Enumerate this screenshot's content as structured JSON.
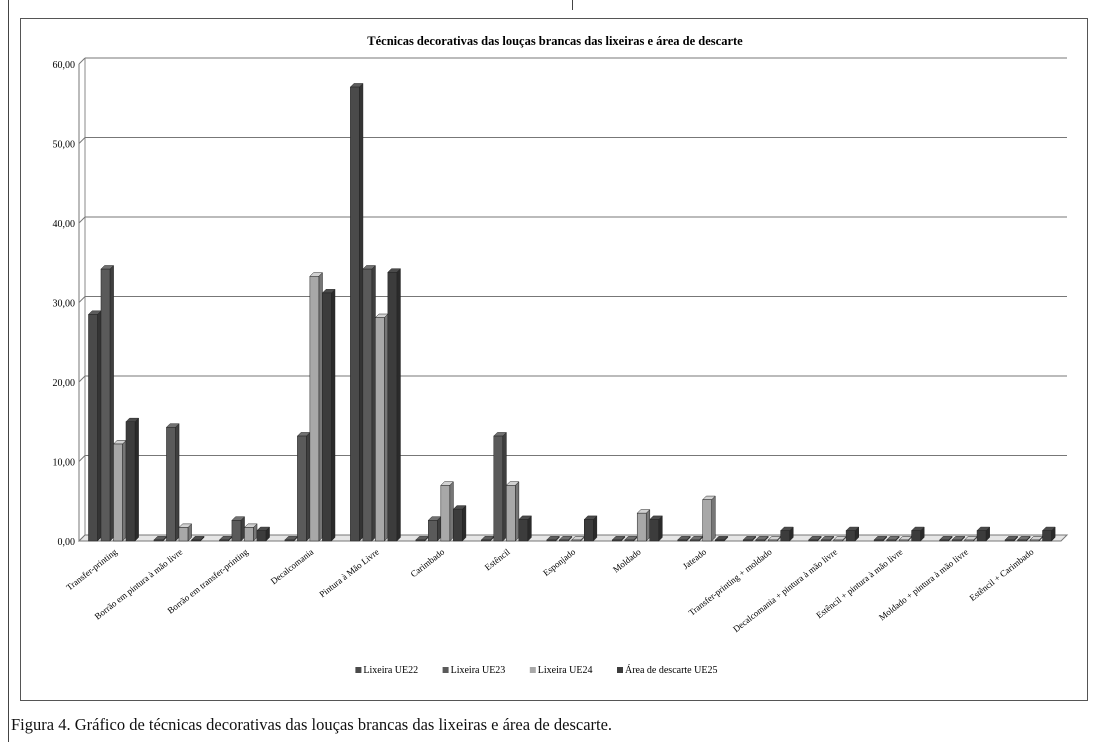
{
  "caption": "Figura 4. Gráfico de técnicas decorativas das louças brancas das lixeiras e área de descarte.",
  "chart_data": {
    "type": "bar",
    "title": "Técnicas decorativas das louças brancas das lixeiras e área de descarte",
    "xlabel": "",
    "ylabel": "",
    "ylim": [
      0,
      60
    ],
    "yticks": [
      "0,00",
      "10,00",
      "20,00",
      "30,00",
      "40,00",
      "50,00",
      "60,00"
    ],
    "grid": true,
    "legend_position": "bottom",
    "categories": [
      "Transfer-printing",
      "Borrão em pintura à mão livre",
      "Borrão em transfer-printing",
      "Decalcomania",
      "Pintura à Mão Livre",
      "Carimbado",
      "Estêncil",
      "Esponjado",
      "Moldado",
      "Jateado",
      "Transfer-printing + moldado",
      "Decalcomania + pintura à mão livre",
      "Estêncil + pintura à mão livre",
      "Moldado + pintura à mão livre",
      "Estêncil + Carimbado"
    ],
    "series": [
      {
        "name": "Lixeira UE22",
        "color": "#4a4a4a",
        "values": [
          28.5,
          0,
          0,
          0,
          57.1,
          0,
          0,
          0,
          0,
          0,
          0,
          0,
          0,
          0,
          0
        ]
      },
      {
        "name": "Lixeira UE23",
        "color": "#5a5a5a",
        "values": [
          34.2,
          14.3,
          2.6,
          13.2,
          34.2,
          2.6,
          13.2,
          0,
          0,
          0,
          0,
          0,
          0,
          0,
          0
        ]
      },
      {
        "name": "Lixeira UE24",
        "color": "#a8a8a8",
        "values": [
          12.2,
          1.7,
          1.7,
          33.3,
          28.1,
          7.0,
          7.0,
          0,
          3.5,
          5.2,
          0,
          0,
          0,
          0,
          0
        ]
      },
      {
        "name": "Área de descarte UE25",
        "color": "#3c3c3c",
        "values": [
          15.0,
          0,
          1.3,
          31.2,
          33.8,
          4.0,
          2.7,
          2.7,
          2.7,
          0,
          1.3,
          1.3,
          1.3,
          1.3,
          1.3
        ]
      }
    ]
  }
}
